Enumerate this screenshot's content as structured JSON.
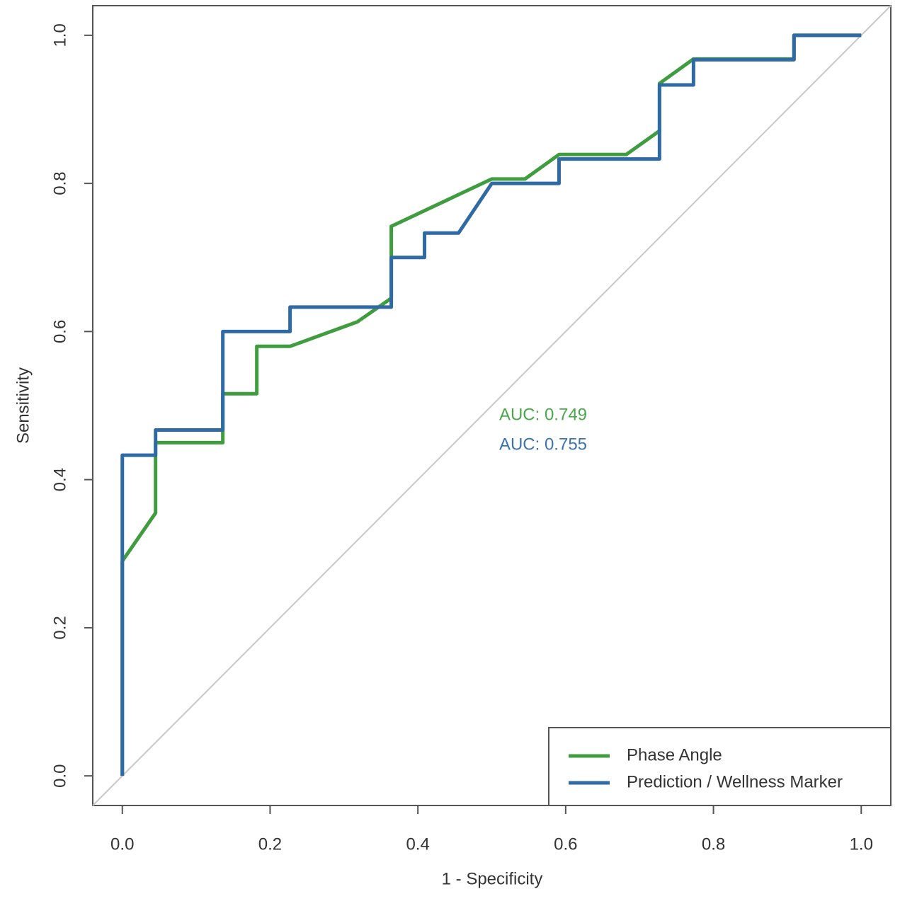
{
  "chart_data": {
    "type": "line",
    "xlabel": "1 - Specificity",
    "ylabel": "Sensitivity",
    "xlim": [
      -0.04,
      1.04
    ],
    "ylim": [
      -0.04,
      1.04
    ],
    "xticks": [
      {
        "value": 0,
        "label": "0.0"
      },
      0.2,
      0.4,
      0.6,
      0.8,
      {
        "value": 1,
        "label": "1.0"
      }
    ],
    "yticks": [
      {
        "value": 0,
        "label": "0.0"
      },
      0.2,
      0.4,
      0.6,
      0.8,
      {
        "value": 1,
        "label": "1.0"
      }
    ],
    "legend": "bottom-right",
    "series": [
      {
        "name": "Phase Angle",
        "color": "#3f9c3f",
        "x": [
          0,
          0,
          0.045,
          0.045,
          0.136,
          0.136,
          0.182,
          0.182,
          0.227,
          0.318,
          0.364,
          0.364,
          0.5,
          0.545,
          0.591,
          0.682,
          0.727,
          0.727,
          0.773,
          0.909,
          0.909,
          1.0
        ],
        "values": [
          0,
          0.29,
          0.355,
          0.45,
          0.45,
          0.516,
          0.516,
          0.58,
          0.58,
          0.613,
          0.645,
          0.742,
          0.806,
          0.806,
          0.839,
          0.839,
          0.871,
          0.935,
          0.968,
          0.968,
          1.0,
          1.0
        ]
      },
      {
        "name": "Prediction / Wellness Marker",
        "color": "#2f6aa5",
        "x": [
          0,
          0,
          0.045,
          0.045,
          0.136,
          0.136,
          0.227,
          0.227,
          0.364,
          0.364,
          0.409,
          0.409,
          0.455,
          0.5,
          0.591,
          0.591,
          0.727,
          0.727,
          0.773,
          0.773,
          0.909,
          0.909,
          1.0
        ],
        "values": [
          0,
          0.433,
          0.433,
          0.467,
          0.467,
          0.6,
          0.6,
          0.633,
          0.633,
          0.7,
          0.7,
          0.733,
          0.733,
          0.8,
          0.8,
          0.833,
          0.833,
          0.933,
          0.933,
          0.967,
          0.967,
          1.0,
          1.0
        ]
      }
    ],
    "annotations": [
      {
        "text": "AUC: 0.749",
        "color": "#4aa84a"
      },
      {
        "text": "AUC: 0.755",
        "color": "#3b73b0"
      }
    ]
  }
}
